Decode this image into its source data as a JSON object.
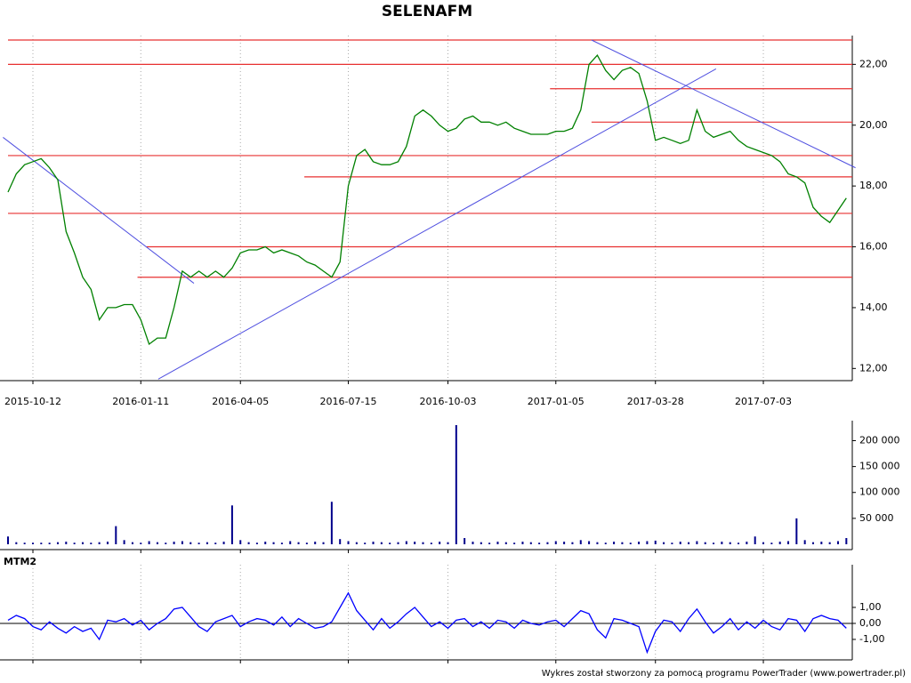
{
  "chart_data": [
    {
      "type": "line",
      "title": "SELENAFM",
      "categories": [
        null,
        null,
        null,
        "2015-10-12",
        null,
        null,
        null,
        null,
        null,
        null,
        null,
        null,
        null,
        null,
        null,
        null,
        "2016-01-11",
        null,
        null,
        null,
        null,
        null,
        null,
        null,
        null,
        null,
        null,
        null,
        "2016-04-05",
        null,
        null,
        null,
        null,
        null,
        null,
        null,
        null,
        null,
        null,
        null,
        null,
        "2016-07-15",
        null,
        null,
        null,
        null,
        null,
        null,
        null,
        null,
        null,
        null,
        null,
        "2016-10-03",
        null,
        null,
        null,
        null,
        null,
        null,
        null,
        null,
        null,
        null,
        null,
        null,
        "2017-01-05",
        null,
        null,
        null,
        null,
        null,
        null,
        null,
        null,
        null,
        null,
        null,
        "2017-03-28",
        null,
        null,
        null,
        null,
        null,
        null,
        null,
        null,
        null,
        null,
        null,
        null,
        "2017-07-03",
        null,
        null,
        null,
        null,
        null,
        null,
        null,
        null,
        null,
        null
      ],
      "series": [
        {
          "color": "#008000",
          "values": [
            17.8,
            18.4,
            18.7,
            18.8,
            18.9,
            18.6,
            18.2,
            16.5,
            15.8,
            15.0,
            14.6,
            13.6,
            14.0,
            14.0,
            14.1,
            14.1,
            13.6,
            12.8,
            13.0,
            13.0,
            14.0,
            15.2,
            15.0,
            15.2,
            15.0,
            15.2,
            15.0,
            15.3,
            15.8,
            15.9,
            15.9,
            16.0,
            15.8,
            15.9,
            15.8,
            15.7,
            15.5,
            15.4,
            15.2,
            15.0,
            15.5,
            18.0,
            19.0,
            19.2,
            18.8,
            18.7,
            18.7,
            18.8,
            19.3,
            20.3,
            20.5,
            20.3,
            20.0,
            19.8,
            19.9,
            20.2,
            20.3,
            20.1,
            20.1,
            20.0,
            20.1,
            19.9,
            19.8,
            19.7,
            19.7,
            19.7,
            19.8,
            19.8,
            19.9,
            20.5,
            22.0,
            22.3,
            21.8,
            21.5,
            21.8,
            21.9,
            21.7,
            20.8,
            19.5,
            19.6,
            19.5,
            19.4,
            19.5,
            20.5,
            19.8,
            19.6,
            19.7,
            19.8,
            19.5,
            19.3,
            19.2,
            19.1,
            19.0,
            18.8,
            18.4,
            18.3,
            18.1,
            17.3,
            17.0,
            16.8,
            17.2,
            17.6
          ]
        }
      ],
      "ylim": [
        11.6,
        22.8
      ],
      "yticks": [
        {
          "value": 12,
          "label": "12,00"
        },
        {
          "value": 14,
          "label": "14,00"
        },
        {
          "value": 16,
          "label": "16,00"
        },
        {
          "value": 18,
          "label": "18,00"
        },
        {
          "value": 20,
          "label": "20,00"
        },
        {
          "value": 22,
          "label": "22,00"
        }
      ],
      "support_lines": [
        {
          "value": 22.8,
          "from": 0
        },
        {
          "value": 22.0,
          "from": 0
        },
        {
          "value": 21.2,
          "from": 65.3
        },
        {
          "value": 20.1,
          "from": 70.3
        },
        {
          "value": 19.0,
          "from": 0
        },
        {
          "value": 18.3,
          "from": 35.7
        },
        {
          "value": 17.1,
          "from": 0
        },
        {
          "value": 16.0,
          "from": 16.7
        },
        {
          "value": 15.0,
          "from": 15.6
        }
      ],
      "support_color": "#e83030",
      "trendlines": [
        [
          -0.6,
          19.6,
          22.4,
          14.8
        ],
        [
          18.1,
          11.65,
          85.3,
          21.85
        ],
        [
          70.3,
          22.8,
          102.1,
          18.6
        ]
      ],
      "trend_color": "#5050e0"
    },
    {
      "type": "bar",
      "color": "#00008b",
      "values": [
        15000,
        4000,
        3000,
        3000,
        3000,
        3000,
        4000,
        5000,
        3000,
        4000,
        3000,
        4000,
        5000,
        35000,
        8000,
        4000,
        3000,
        6000,
        4000,
        3000,
        5000,
        6000,
        4000,
        3000,
        4000,
        3000,
        5000,
        75000,
        8000,
        4000,
        3000,
        5000,
        4000,
        3000,
        6000,
        4000,
        3000,
        5000,
        4000,
        82000,
        10000,
        6000,
        4000,
        3000,
        5000,
        4000,
        3000,
        4000,
        6000,
        5000,
        4000,
        3000,
        5000,
        4000,
        230000,
        12000,
        5000,
        4000,
        3000,
        5000,
        4000,
        3000,
        5000,
        4000,
        3000,
        4000,
        6000,
        5000,
        4000,
        8000,
        6000,
        4000,
        3000,
        5000,
        4000,
        3000,
        5000,
        6000,
        7000,
        4000,
        3000,
        5000,
        4000,
        6000,
        4000,
        3000,
        5000,
        4000,
        3000,
        5000,
        15000,
        4000,
        3000,
        5000,
        6000,
        50000,
        8000,
        4000,
        5000,
        4000,
        6000,
        12000
      ],
      "ylim": [
        0,
        230000
      ],
      "yticks": [
        {
          "value": 50000,
          "label": "50 000"
        },
        {
          "value": 100000,
          "label": "100 000"
        },
        {
          "value": 150000,
          "label": "150 000"
        },
        {
          "value": 200000,
          "label": "200 000"
        }
      ]
    },
    {
      "type": "line",
      "title": "MTM2",
      "series": [
        {
          "color": "#0000ff",
          "values": [
            0.2,
            0.5,
            0.3,
            -0.2,
            -0.4,
            0.1,
            -0.3,
            -0.6,
            -0.2,
            -0.5,
            -0.3,
            -1.0,
            0.2,
            0.1,
            0.3,
            -0.1,
            0.2,
            -0.4,
            0.0,
            0.3,
            0.9,
            1.0,
            0.4,
            -0.2,
            -0.5,
            0.1,
            0.3,
            0.5,
            -0.2,
            0.1,
            0.3,
            0.2,
            -0.1,
            0.4,
            -0.2,
            0.3,
            0.0,
            -0.3,
            -0.2,
            0.1,
            1.0,
            1.9,
            0.8,
            0.2,
            -0.4,
            0.3,
            -0.3,
            0.1,
            0.6,
            1.0,
            0.4,
            -0.2,
            0.1,
            -0.3,
            0.2,
            0.3,
            -0.2,
            0.1,
            -0.3,
            0.2,
            0.1,
            -0.3,
            0.2,
            0.0,
            -0.1,
            0.1,
            0.2,
            -0.2,
            0.3,
            0.8,
            0.6,
            -0.4,
            -0.9,
            0.3,
            0.2,
            0.0,
            -0.2,
            -1.8,
            -0.5,
            0.2,
            0.1,
            -0.5,
            0.3,
            0.9,
            0.1,
            -0.6,
            -0.2,
            0.3,
            -0.4,
            0.1,
            -0.3,
            0.2,
            -0.2,
            -0.4,
            0.3,
            0.2,
            -0.5,
            0.3,
            0.5,
            0.3,
            0.2,
            -0.3
          ]
        }
      ],
      "ylim": [
        -2.28,
        3.39
      ],
      "yticks": [
        {
          "value": 1,
          "label": "1,00"
        },
        {
          "value": 0,
          "label": "0,00"
        },
        {
          "value": -1,
          "label": "-1,00"
        }
      ]
    }
  ],
  "footer": "Wykres został stworzony za pomocą programu PowerTrader (www.powertrader.pl)"
}
